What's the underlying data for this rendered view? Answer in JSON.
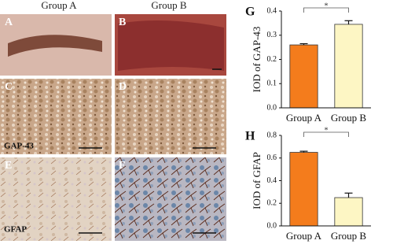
{
  "column_headers": [
    "Group A",
    "Group B"
  ],
  "panels": [
    {
      "letter": "A"
    },
    {
      "letter": "B"
    },
    {
      "letter": "C"
    },
    {
      "letter": "D"
    },
    {
      "letter": "E"
    },
    {
      "letter": "F"
    }
  ],
  "stain_labels": [
    "GAP-43",
    "GFAP"
  ],
  "chart_data": [
    {
      "type": "bar",
      "label": "G",
      "y_label": "IOD of GAP-43",
      "categories": [
        "Group A",
        "Group B"
      ],
      "values": [
        0.26,
        0.345
      ],
      "errors": [
        0.005,
        0.015
      ],
      "colors": [
        "#f47c1c",
        "#fdf6c4"
      ],
      "ylim": [
        0,
        0.4
      ],
      "yticks": [
        {
          "value": 0,
          "label": "0.0"
        },
        0.1,
        0.2,
        0.3,
        0.4
      ],
      "annotation": "*"
    },
    {
      "type": "bar",
      "label": "H",
      "y_label": "IOD of GFAP",
      "categories": [
        "Group A",
        "Group B"
      ],
      "values": [
        0.65,
        0.25
      ],
      "errors": [
        0.01,
        0.04
      ],
      "colors": [
        "#f47c1c",
        "#fdf6c4"
      ],
      "ylim": [
        0,
        0.8
      ],
      "yticks": [
        {
          "value": 0,
          "label": "0.0"
        },
        0.2,
        0.4,
        0.6,
        0.8
      ],
      "annotation": "*"
    }
  ]
}
